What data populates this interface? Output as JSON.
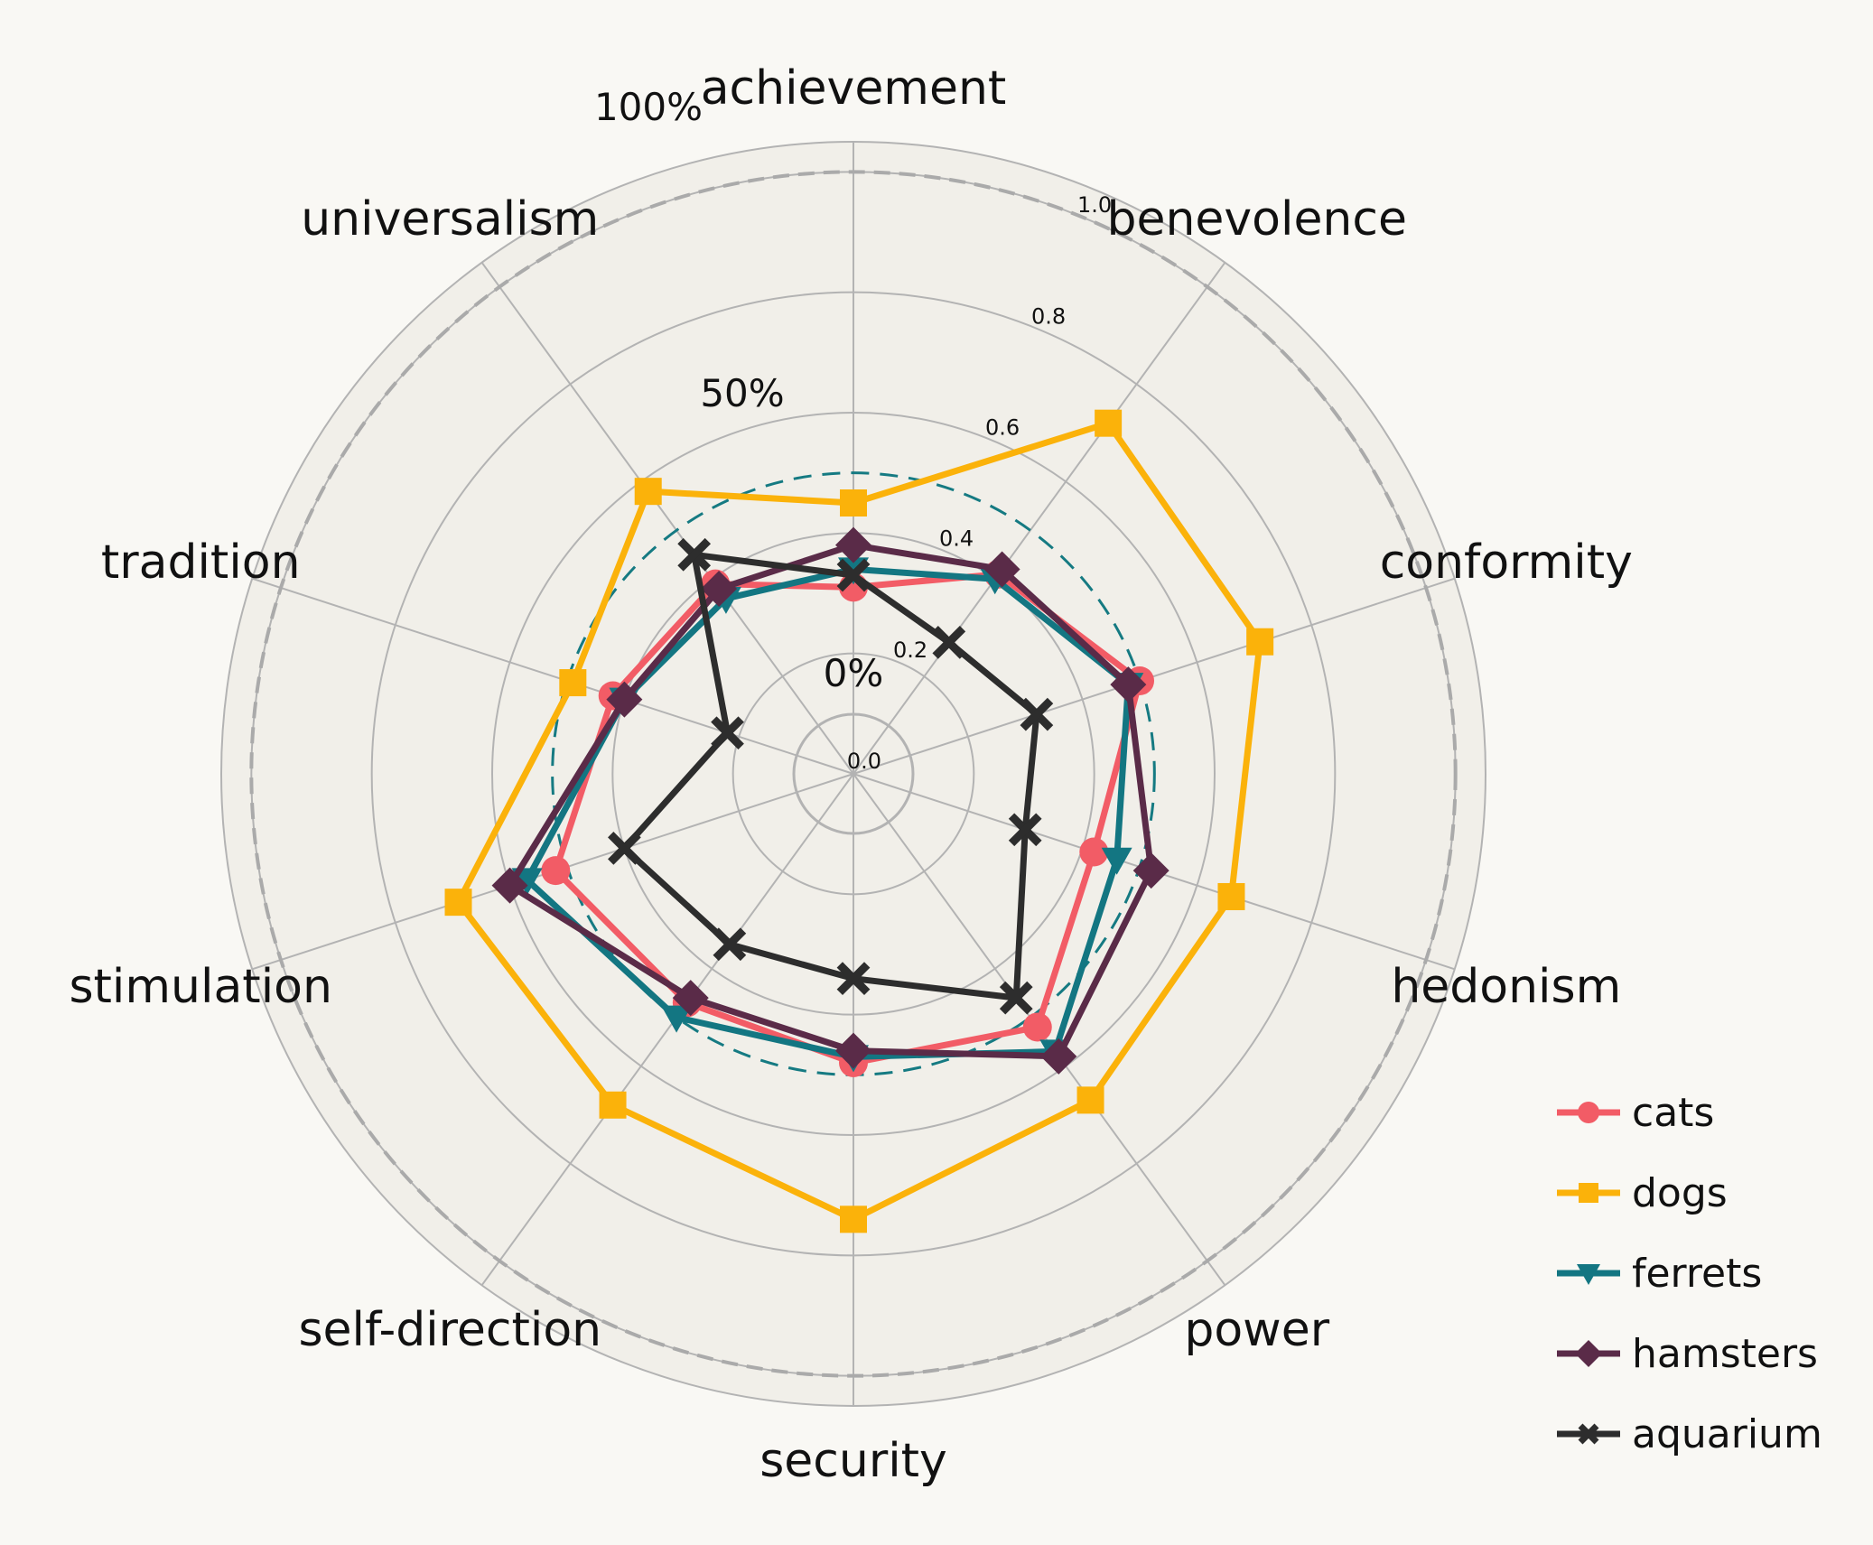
{
  "chart_data": {
    "type": "radar",
    "axes": [
      "achievement",
      "benevolence",
      "conformity",
      "hedonism",
      "power",
      "security",
      "self-direction",
      "stimulation",
      "tradition",
      "universalism"
    ],
    "rlim": [
      0,
      1.05
    ],
    "radial_ticks": [
      "0.0",
      "0.2",
      "0.4",
      "0.6",
      "0.8",
      "1.0"
    ],
    "radial_tick_values": [
      0,
      0.2,
      0.4,
      0.6,
      0.8,
      1.0
    ],
    "reference_rings": [
      {
        "value": 0,
        "label": "0%",
        "style": "solid"
      },
      {
        "value": 0.5,
        "label": "50%",
        "style": "dashed",
        "color": "#157a82"
      },
      {
        "value": 1.0,
        "label": "100%",
        "style": "dashed",
        "color": "#aaaaaa"
      }
    ],
    "series": [
      {
        "name": "cats",
        "color": "#f25c66",
        "marker": "circle",
        "values": [
          0.31,
          0.41,
          0.5,
          0.42,
          0.52,
          0.48,
          0.47,
          0.52,
          0.42,
          0.39
        ]
      },
      {
        "name": "dogs",
        "color": "#fbb20a",
        "marker": "square",
        "values": [
          0.45,
          0.72,
          0.71,
          0.66,
          0.67,
          0.74,
          0.68,
          0.69,
          0.49,
          0.58
        ]
      },
      {
        "name": "ferrets",
        "color": "#137682",
        "marker": "triangle-down",
        "values": [
          0.34,
          0.4,
          0.48,
          0.46,
          0.57,
          0.47,
          0.5,
          0.57,
          0.4,
          0.36
        ]
      },
      {
        "name": "hamsters",
        "color": "#5a2b48",
        "marker": "diamond",
        "values": [
          0.38,
          0.42,
          0.48,
          0.52,
          0.58,
          0.46,
          0.46,
          0.6,
          0.4,
          0.38
        ]
      },
      {
        "name": "aquarium",
        "color": "#2d2d2d",
        "marker": "x",
        "values": [
          0.33,
          0.27,
          0.32,
          0.3,
          0.46,
          0.34,
          0.35,
          0.4,
          0.22,
          0.45
        ]
      }
    ]
  }
}
